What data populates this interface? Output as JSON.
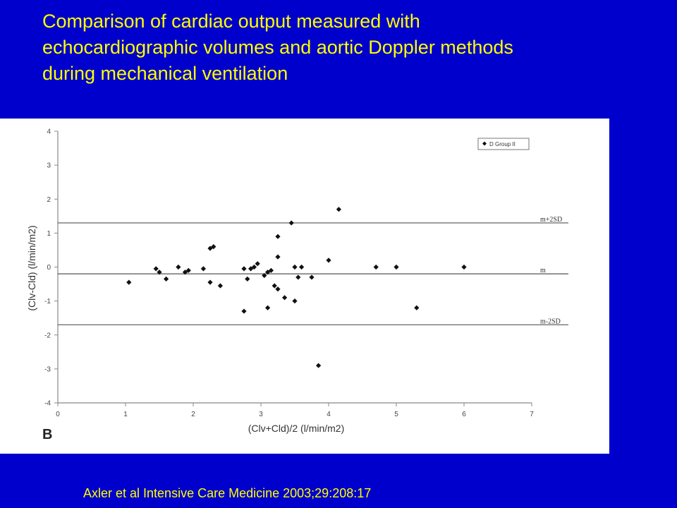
{
  "slide": {
    "title_line1": "Comparison of cardiac output measured with",
    "title_line2": "echocardiographic  volumes and aortic Doppler methods",
    "title_line3": "during mechanical ventilation",
    "citation": "Axler et al Intensive Care Medicine 2003;29:208:17",
    "colors": {
      "background": "#0000cc",
      "title_text": "#ffff00",
      "panel": "#ffffff"
    }
  },
  "chart_data": {
    "type": "scatter",
    "panel_label": "B",
    "xlabel": "(Clv+Cld)/2 (l/min/m2)",
    "ylabel": "(Clv-Cld) (l/min/m2)",
    "xlim": [
      0,
      7
    ],
    "ylim": [
      -4,
      4
    ],
    "xticks": [
      "0",
      "1",
      "2",
      "3",
      "4",
      "5",
      "6",
      "7"
    ],
    "yticks": [
      "4",
      "3",
      "2",
      "1",
      "0",
      "-1",
      "-2",
      "-3",
      "-4"
    ],
    "grid": false,
    "legend": {
      "position": "top-right",
      "entries": [
        "D Group II"
      ]
    },
    "reference_lines": [
      {
        "label": "m+2SD",
        "y": 1.3
      },
      {
        "label": "m",
        "y": -0.2
      },
      {
        "label": "m-2SD",
        "y": -1.7
      }
    ],
    "series": [
      {
        "name": "D Group II",
        "marker": "diamond",
        "color": "#111111",
        "points": [
          [
            1.05,
            -0.45
          ],
          [
            1.45,
            -0.05
          ],
          [
            1.5,
            -0.15
          ],
          [
            1.6,
            -0.35
          ],
          [
            1.78,
            0.0
          ],
          [
            1.88,
            -0.15
          ],
          [
            1.93,
            -0.1
          ],
          [
            2.15,
            -0.05
          ],
          [
            2.25,
            0.55
          ],
          [
            2.3,
            0.6
          ],
          [
            2.25,
            -0.45
          ],
          [
            2.4,
            -0.55
          ],
          [
            2.75,
            -0.05
          ],
          [
            2.8,
            -0.35
          ],
          [
            2.85,
            -0.05
          ],
          [
            2.9,
            0.0
          ],
          [
            2.95,
            0.1
          ],
          [
            2.75,
            -1.3
          ],
          [
            3.05,
            -0.25
          ],
          [
            3.1,
            -0.15
          ],
          [
            3.15,
            -0.1
          ],
          [
            3.1,
            -1.2
          ],
          [
            3.2,
            -0.55
          ],
          [
            3.25,
            -0.65
          ],
          [
            3.25,
            0.3
          ],
          [
            3.25,
            0.9
          ],
          [
            3.35,
            -0.9
          ],
          [
            3.45,
            1.3
          ],
          [
            3.5,
            0.0
          ],
          [
            3.5,
            -1.0
          ],
          [
            3.55,
            -0.3
          ],
          [
            3.6,
            0.0
          ],
          [
            3.75,
            -0.3
          ],
          [
            3.85,
            -2.9
          ],
          [
            4.0,
            0.2
          ],
          [
            4.15,
            1.7
          ],
          [
            4.7,
            0.0
          ],
          [
            5.0,
            0.0
          ],
          [
            5.3,
            -1.2
          ],
          [
            6.0,
            0.0
          ]
        ]
      }
    ]
  }
}
